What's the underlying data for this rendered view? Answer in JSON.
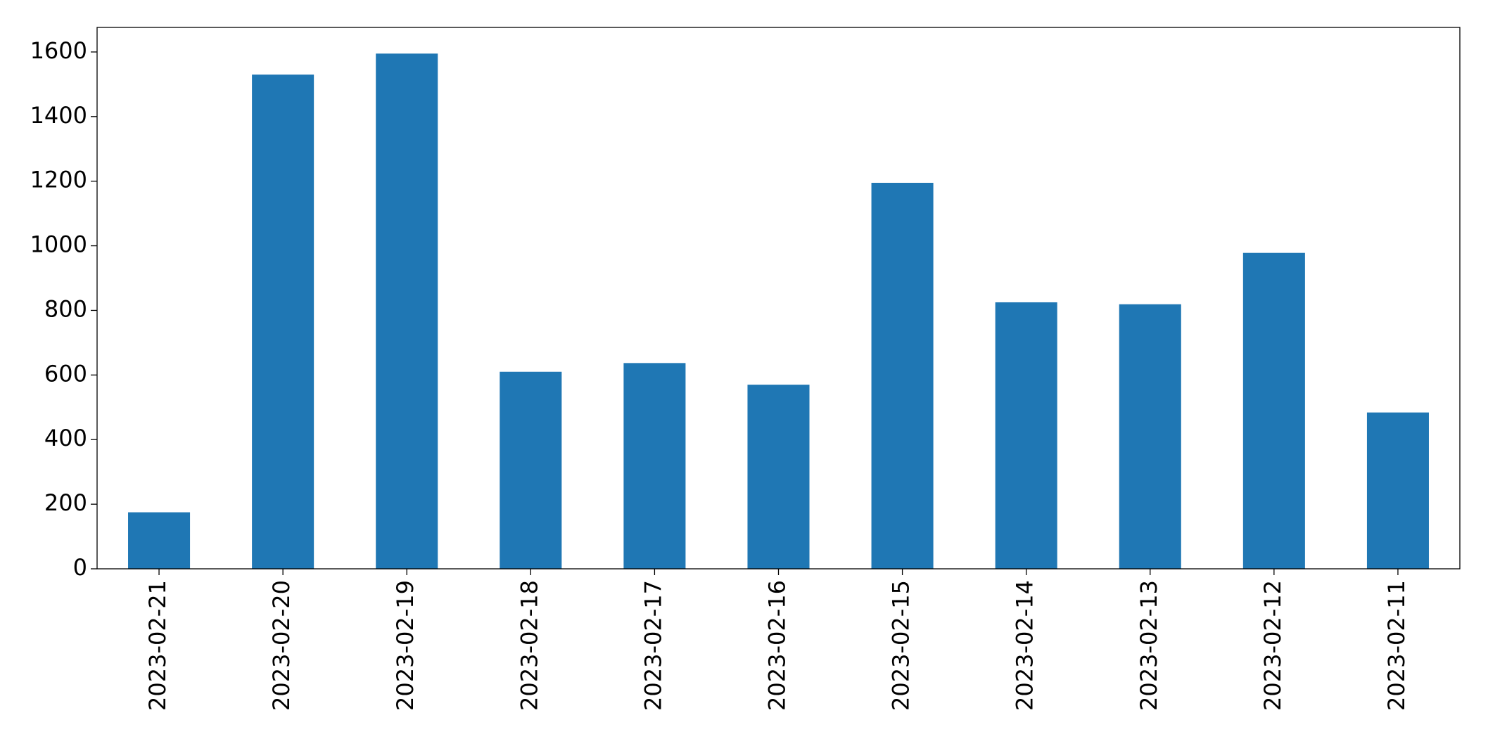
{
  "chart_data": {
    "type": "bar",
    "categories": [
      "2023-02-21",
      "2023-02-20",
      "2023-02-19",
      "2023-02-18",
      "2023-02-17",
      "2023-02-16",
      "2023-02-15",
      "2023-02-14",
      "2023-02-13",
      "2023-02-12",
      "2023-02-11"
    ],
    "values": [
      175,
      1530,
      1595,
      610,
      637,
      570,
      1195,
      825,
      819,
      978,
      484
    ],
    "color": "#1f77b4",
    "ylim": [
      0,
      1676
    ],
    "yticks": [
      0,
      200,
      400,
      600,
      800,
      1000,
      1200,
      1400,
      1600
    ],
    "grid": false
  }
}
